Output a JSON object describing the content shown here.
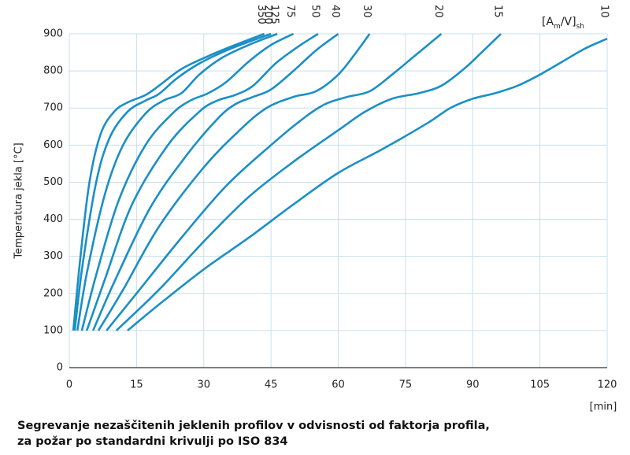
{
  "chart_data": {
    "type": "line",
    "ylabel": "Temperatura jekla  [°C]",
    "xlabel": "[min]",
    "legend_title_parts": [
      "[A",
      "m",
      "/V]",
      "sh"
    ],
    "caption": [
      "Segrevanje nezaščitenih jeklenih profilov v odvisnosti od faktorja profila,",
      "za požar po standardni krivulji po ISO 834"
    ],
    "xlim": [
      0,
      120
    ],
    "xticks": [
      0,
      15,
      30,
      45,
      60,
      75,
      90,
      105,
      120
    ],
    "ylim": [
      0,
      900
    ],
    "yticks": [
      0,
      100,
      200,
      300,
      400,
      500,
      600,
      700,
      800,
      900
    ],
    "grid": true,
    "series": [
      {
        "name": "350",
        "color": "#1b8fc6",
        "x": [
          0.9,
          2.5,
          4.5,
          7,
          10,
          13,
          17,
          20,
          25,
          31,
          37,
          43.5
        ],
        "values": [
          100,
          300,
          500,
          630,
          690,
          715,
          735,
          760,
          805,
          840,
          870,
          900
        ]
      },
      {
        "name": "200",
        "color": "#1b8fc6",
        "x": [
          1.2,
          3,
          6,
          9,
          13,
          17,
          20,
          24,
          29,
          36,
          45
        ],
        "values": [
          100,
          280,
          500,
          620,
          690,
          720,
          738,
          780,
          820,
          860,
          900
        ]
      },
      {
        "name": "125",
        "color": "#1b8fc6",
        "x": [
          1.8,
          4,
          8,
          12,
          17,
          21,
          25,
          29,
          34,
          40,
          46.4
        ],
        "values": [
          100,
          260,
          470,
          600,
          685,
          720,
          740,
          790,
          835,
          870,
          900
        ]
      },
      {
        "name": "75",
        "color": "#1b8fc6",
        "x": [
          2.8,
          6,
          11,
          17,
          23,
          27,
          31,
          35,
          40,
          45,
          50
        ],
        "values": [
          100,
          250,
          450,
          600,
          685,
          720,
          740,
          770,
          825,
          870,
          900
        ]
      },
      {
        "name": "50",
        "color": "#1b8fc6",
        "x": [
          3.9,
          8,
          14,
          22,
          29,
          33,
          37,
          41,
          46,
          51,
          55.5
        ],
        "values": [
          100,
          240,
          440,
          600,
          690,
          720,
          735,
          760,
          820,
          865,
          900
        ]
      },
      {
        "name": "40",
        "color": "#1b8fc6",
        "x": [
          5.3,
          10,
          18,
          26,
          33,
          37,
          41,
          45,
          50,
          55,
          60
        ],
        "values": [
          100,
          230,
          430,
          570,
          670,
          710,
          730,
          750,
          800,
          855,
          900
        ]
      },
      {
        "name": "30",
        "color": "#1b8fc6",
        "x": [
          6.5,
          12,
          20,
          30,
          38,
          44,
          50,
          55,
          60,
          64,
          67
        ],
        "values": [
          100,
          210,
          380,
          540,
          640,
          700,
          730,
          745,
          790,
          850,
          900
        ]
      },
      {
        "name": "20",
        "color": "#1b8fc6",
        "x": [
          8.3,
          15,
          25,
          35,
          45,
          52,
          57,
          62,
          67,
          72,
          77,
          83
        ],
        "values": [
          100,
          200,
          350,
          490,
          600,
          670,
          710,
          730,
          745,
          790,
          840,
          900
        ]
      },
      {
        "name": "15",
        "color": "#1b8fc6",
        "x": [
          10.5,
          20,
          30,
          40,
          50,
          60,
          66,
          72,
          78,
          83,
          88,
          92,
          96.3
        ],
        "values": [
          100,
          210,
          340,
          460,
          555,
          640,
          690,
          725,
          740,
          760,
          805,
          850,
          900
        ]
      },
      {
        "name": "10",
        "color": "#1b8fc6",
        "x": [
          13,
          20,
          30,
          40,
          50,
          60,
          70,
          80,
          85,
          90,
          95,
          100,
          105,
          110,
          115,
          120
        ],
        "values": [
          100,
          170,
          265,
          350,
          440,
          525,
          590,
          660,
          700,
          725,
          740,
          760,
          790,
          825,
          860,
          887
        ]
      }
    ]
  }
}
